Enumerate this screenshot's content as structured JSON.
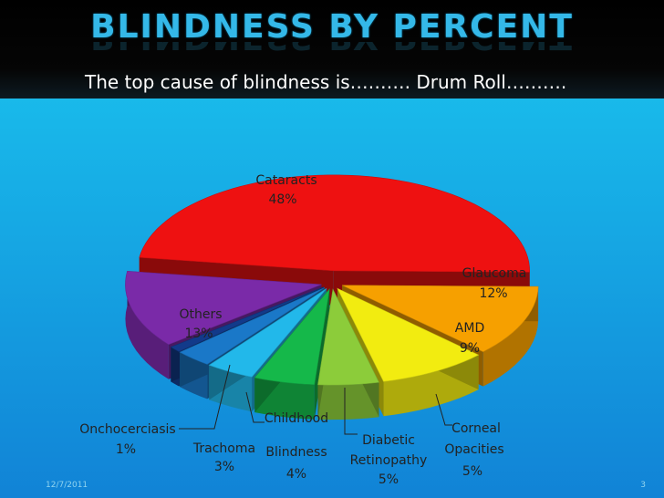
{
  "slide": {
    "title": "BLINDNESS BY PERCENT",
    "subtitle": "The top cause of blindness is………. Drum Roll……….",
    "date": "12/7/2011",
    "page_number": "3"
  },
  "chart_data": {
    "type": "pie",
    "title": "",
    "slices": [
      {
        "name": "Cataracts",
        "value": 48,
        "label": "48%",
        "color": "#ee1111"
      },
      {
        "name": "Glaucoma",
        "value": 12,
        "label": "12%",
        "color": "#f6a000"
      },
      {
        "name": "AMD",
        "value": 9,
        "label": "9%",
        "color": "#f2ec10"
      },
      {
        "name": "Corneal Opacities",
        "value": 5,
        "label": "5%",
        "color": "#8ccc3a"
      },
      {
        "name": "Diabetic Retinopathy",
        "value": 5,
        "label": "5%",
        "color": "#15b84a"
      },
      {
        "name": "Childhood Blindness",
        "value": 4,
        "label": "4%",
        "color": "#22b8ea"
      },
      {
        "name": "Trachoma",
        "value": 3,
        "label": "3%",
        "color": "#1a78c8"
      },
      {
        "name": "Onchocerciasis",
        "value": 1,
        "label": "1%",
        "color": "#123a8a"
      },
      {
        "name": "Others",
        "value": 13,
        "label": "13%",
        "color": "#7a2aa8"
      }
    ],
    "labels": {
      "cataracts": [
        "Cataracts",
        "48%"
      ],
      "glaucoma": [
        "Glaucoma",
        "12%"
      ],
      "amd": [
        "AMD",
        "9%"
      ],
      "corneal": [
        "Corneal",
        "Opacities",
        "5%"
      ],
      "diabetic": [
        "Diabetic",
        "Retinopathy",
        "5%"
      ],
      "childhood": [
        "Childhood",
        "Blindness",
        "4%"
      ],
      "trachoma": [
        "Trachoma",
        "3%"
      ],
      "oncho": [
        "Onchocerciasis",
        "1%"
      ],
      "others": [
        "Others",
        "13%"
      ]
    }
  }
}
